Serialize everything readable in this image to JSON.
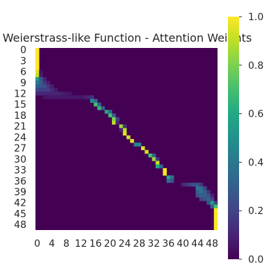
{
  "chart_data": {
    "type": "heatmap",
    "title": "Weierstrass-like Function - Attention Weights",
    "xlabel": "",
    "ylabel": "",
    "n": 50,
    "x_ticks": [
      0,
      4,
      8,
      12,
      16,
      20,
      24,
      28,
      32,
      36,
      40,
      44,
      48
    ],
    "y_ticks": [
      0,
      3,
      6,
      9,
      12,
      15,
      18,
      21,
      24,
      27,
      30,
      33,
      36,
      39,
      42,
      45,
      48
    ],
    "colorbar": {
      "range": [
        0.0,
        1.0
      ],
      "ticks": [
        0.0,
        0.2,
        0.4,
        0.6,
        0.8,
        1.0
      ],
      "tick_labels": [
        "0.0",
        "0.2",
        "0.4",
        "0.6",
        "0.8",
        "1.0"
      ],
      "colormap": "viridis"
    },
    "grid": false,
    "description_of_values": "Attention weight per (query row, key column). Rows list the nonzero weights; all other cells are ~0.",
    "rows": [
      {
        "row": 0,
        "weights": [
          [
            0,
            1.0
          ]
        ]
      },
      {
        "row": 1,
        "weights": [
          [
            0,
            1.0
          ]
        ]
      },
      {
        "row": 2,
        "weights": [
          [
            0,
            1.0
          ]
        ]
      },
      {
        "row": 3,
        "weights": [
          [
            0,
            1.0
          ]
        ]
      },
      {
        "row": 4,
        "weights": [
          [
            0,
            1.0
          ]
        ]
      },
      {
        "row": 5,
        "weights": [
          [
            0,
            1.0
          ]
        ]
      },
      {
        "row": 6,
        "weights": [
          [
            0,
            0.95
          ],
          [
            1,
            0.05
          ]
        ]
      },
      {
        "row": 7,
        "weights": [
          [
            0,
            0.9
          ],
          [
            1,
            0.08
          ]
        ]
      },
      {
        "row": 8,
        "weights": [
          [
            0,
            0.55
          ],
          [
            1,
            0.25
          ],
          [
            2,
            0.1
          ]
        ]
      },
      {
        "row": 9,
        "weights": [
          [
            0,
            0.4
          ],
          [
            1,
            0.3
          ],
          [
            2,
            0.15
          ],
          [
            3,
            0.08
          ]
        ]
      },
      {
        "row": 10,
        "weights": [
          [
            0,
            0.3
          ],
          [
            1,
            0.25
          ],
          [
            2,
            0.25
          ],
          [
            3,
            0.15
          ],
          [
            4,
            0.08
          ]
        ]
      },
      {
        "row": 11,
        "weights": [
          [
            0,
            0.2
          ],
          [
            1,
            0.18
          ],
          [
            2,
            0.18
          ],
          [
            3,
            0.18
          ],
          [
            4,
            0.12
          ],
          [
            5,
            0.08
          ]
        ]
      },
      {
        "row": 12,
        "weights": [
          [
            0,
            0.12
          ],
          [
            1,
            0.1
          ],
          [
            2,
            0.1
          ],
          [
            3,
            0.1
          ],
          [
            4,
            0.1
          ],
          [
            5,
            0.1
          ],
          [
            6,
            0.1
          ],
          [
            7,
            0.08
          ],
          [
            8,
            0.06
          ],
          [
            9,
            0.05
          ]
        ]
      },
      {
        "row": 13,
        "weights": [
          [
            2,
            0.05
          ],
          [
            3,
            0.06
          ],
          [
            4,
            0.06
          ],
          [
            5,
            0.06
          ],
          [
            6,
            0.06
          ],
          [
            7,
            0.06
          ],
          [
            8,
            0.06
          ],
          [
            9,
            0.06
          ],
          [
            10,
            0.06
          ],
          [
            11,
            0.06
          ],
          [
            12,
            0.06
          ],
          [
            13,
            0.08
          ],
          [
            14,
            0.1
          ],
          [
            15,
            0.15
          ]
        ]
      },
      {
        "row": 14,
        "weights": [
          [
            15,
            0.5
          ],
          [
            16,
            0.35
          ]
        ]
      },
      {
        "row": 15,
        "weights": [
          [
            16,
            0.7
          ],
          [
            17,
            0.3
          ]
        ]
      },
      {
        "row": 16,
        "weights": [
          [
            17,
            0.65
          ],
          [
            18,
            0.3
          ]
        ]
      },
      {
        "row": 17,
        "weights": [
          [
            19,
            0.6
          ],
          [
            20,
            0.35
          ]
        ]
      },
      {
        "row": 18,
        "weights": [
          [
            20,
            0.7
          ],
          [
            21,
            0.3
          ]
        ]
      },
      {
        "row": 19,
        "weights": [
          [
            21,
            0.8
          ],
          [
            22,
            0.2
          ]
        ]
      },
      {
        "row": 20,
        "weights": [
          [
            21,
            0.9
          ],
          [
            22,
            0.1
          ]
        ]
      },
      {
        "row": 21,
        "weights": [
          [
            23,
            0.85
          ],
          [
            24,
            0.15
          ]
        ]
      },
      {
        "row": 22,
        "weights": [
          [
            24,
            0.9
          ],
          [
            23,
            0.1
          ]
        ]
      },
      {
        "row": 23,
        "weights": [
          [
            24,
            0.95
          ]
        ]
      },
      {
        "row": 24,
        "weights": [
          [
            25,
            0.92
          ]
        ]
      },
      {
        "row": 25,
        "weights": [
          [
            26,
            0.95
          ]
        ]
      },
      {
        "row": 26,
        "weights": [
          [
            27,
            0.45
          ],
          [
            28,
            0.45
          ]
        ]
      },
      {
        "row": 27,
        "weights": [
          [
            29,
            0.95
          ]
        ]
      },
      {
        "row": 28,
        "weights": [
          [
            30,
            0.92
          ]
        ]
      },
      {
        "row": 29,
        "weights": [
          [
            31,
            0.7
          ],
          [
            32,
            0.3
          ]
        ]
      },
      {
        "row": 30,
        "weights": [
          [
            32,
            0.85
          ],
          [
            33,
            0.15
          ]
        ]
      },
      {
        "row": 31,
        "weights": [
          [
            33,
            0.9
          ]
        ]
      },
      {
        "row": 32,
        "weights": [
          [
            33,
            0.6
          ],
          [
            34,
            0.35
          ]
        ]
      },
      {
        "row": 33,
        "weights": [
          [
            35,
            1.0
          ]
        ]
      },
      {
        "row": 34,
        "weights": [
          [
            35,
            1.0
          ]
        ]
      },
      {
        "row": 35,
        "weights": [
          [
            36,
            0.6
          ],
          [
            37,
            0.35
          ]
        ]
      },
      {
        "row": 36,
        "weights": [
          [
            36,
            0.35
          ],
          [
            37,
            0.25
          ]
        ]
      },
      {
        "row": 37,
        "weights": [
          [
            40,
            0.1
          ],
          [
            41,
            0.15
          ],
          [
            42,
            0.2
          ],
          [
            43,
            0.25
          ],
          [
            44,
            0.25
          ],
          [
            45,
            0.15
          ]
        ]
      },
      {
        "row": 38,
        "weights": [
          [
            44,
            0.4
          ],
          [
            45,
            0.35
          ],
          [
            46,
            0.2
          ]
        ]
      },
      {
        "row": 39,
        "weights": [
          [
            44,
            0.3
          ],
          [
            45,
            0.35
          ],
          [
            46,
            0.3
          ],
          [
            47,
            0.15
          ]
        ]
      },
      {
        "row": 40,
        "weights": [
          [
            44,
            0.25
          ],
          [
            45,
            0.3
          ],
          [
            46,
            0.3
          ],
          [
            47,
            0.25
          ],
          [
            48,
            0.1
          ]
        ]
      },
      {
        "row": 41,
        "weights": [
          [
            45,
            0.2
          ],
          [
            46,
            0.25
          ],
          [
            47,
            0.3
          ],
          [
            48,
            0.2
          ]
        ]
      },
      {
        "row": 42,
        "weights": [
          [
            47,
            0.25
          ],
          [
            48,
            0.55
          ],
          [
            49,
            0.2
          ]
        ]
      },
      {
        "row": 43,
        "weights": [
          [
            48,
            0.3
          ],
          [
            49,
            0.7
          ]
        ]
      },
      {
        "row": 44,
        "weights": [
          [
            49,
            1.0
          ]
        ]
      },
      {
        "row": 45,
        "weights": [
          [
            49,
            1.0
          ]
        ]
      },
      {
        "row": 46,
        "weights": [
          [
            49,
            1.0
          ]
        ]
      },
      {
        "row": 47,
        "weights": [
          [
            49,
            1.0
          ]
        ]
      },
      {
        "row": 48,
        "weights": [
          [
            49,
            1.0
          ]
        ]
      },
      {
        "row": 49,
        "weights": [
          [
            49,
            1.0
          ]
        ]
      }
    ]
  }
}
